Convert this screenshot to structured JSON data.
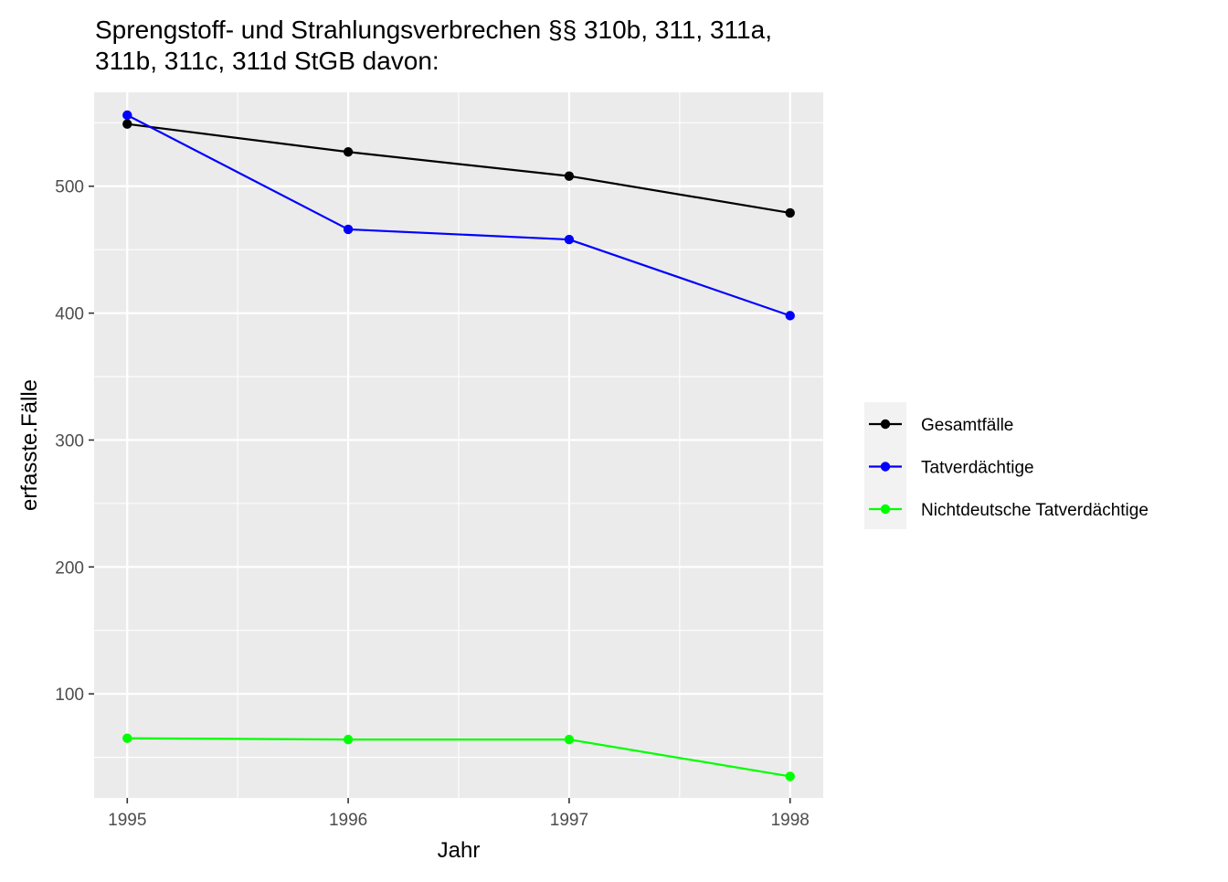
{
  "chart_data": {
    "type": "line",
    "title": "Sprengstoff- und Strahlungsverbrechen §§ 310b, 311, 311a,\n311b, 311c, 311d StGB davon:",
    "xlabel": "Jahr",
    "ylabel": "erfasste.Fälle",
    "x": [
      1995,
      1996,
      1997,
      1998
    ],
    "x_ticks": [
      "1995",
      "1996",
      "1997",
      "1998"
    ],
    "y_ticks": [
      "100",
      "200",
      "300",
      "400",
      "500"
    ],
    "xlim": [
      1994.85,
      1998.15
    ],
    "ylim": [
      18,
      574
    ],
    "grid": true,
    "legend_position": "right",
    "series": [
      {
        "name": "Gesamtfälle",
        "color": "#000000",
        "values": [
          549,
          527,
          508,
          479
        ]
      },
      {
        "name": "Tatverdächtige",
        "color": "#0000FF",
        "values": [
          556,
          466,
          458,
          398
        ]
      },
      {
        "name": "Nichtdeutsche Tatverdächtige",
        "color": "#00FF00",
        "values": [
          65,
          64,
          64,
          35
        ]
      }
    ]
  }
}
